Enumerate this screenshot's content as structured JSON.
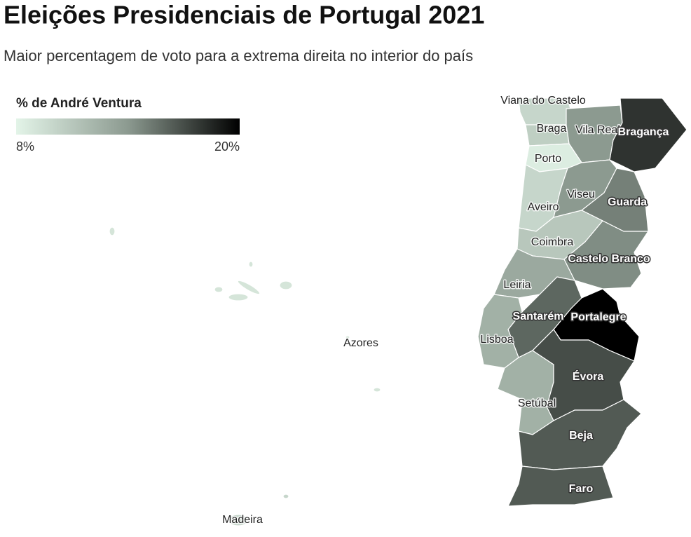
{
  "title": "Eleições Presidenciais de Portugal 2021",
  "subtitle": "Maior percentagem de voto para a extrema direita no interior do país",
  "legend": {
    "title": "% de André Ventura",
    "min": {
      "value": 8,
      "label": "8%"
    },
    "max": {
      "value": 20,
      "label": "20%"
    },
    "colors": [
      "#e3f4e8",
      "#8c9a90",
      "#000000"
    ]
  },
  "regions": [
    {
      "name": "Viana do Castelo",
      "value": 10
    },
    {
      "name": "Braga",
      "value": 10.5
    },
    {
      "name": "Vila Real",
      "value": 14
    },
    {
      "name": "Bragança",
      "value": 18
    },
    {
      "name": "Porto",
      "value": 8.5
    },
    {
      "name": "Aveiro",
      "value": 10
    },
    {
      "name": "Viseu",
      "value": 14
    },
    {
      "name": "Guarda",
      "value": 15
    },
    {
      "name": "Coimbra",
      "value": 11
    },
    {
      "name": "Castelo Branco",
      "value": 14.5
    },
    {
      "name": "Leiria",
      "value": 13
    },
    {
      "name": "Santarém",
      "value": 16
    },
    {
      "name": "Portalegre",
      "value": 20
    },
    {
      "name": "Lisboa",
      "value": 12.5
    },
    {
      "name": "Setúbal",
      "value": 12.5
    },
    {
      "name": "Évora",
      "value": 17
    },
    {
      "name": "Beja",
      "value": 16.5
    },
    {
      "name": "Faro",
      "value": 16.5
    },
    {
      "name": "Azores",
      "value": 9
    },
    {
      "name": "Madeira",
      "value": 10
    }
  ]
}
